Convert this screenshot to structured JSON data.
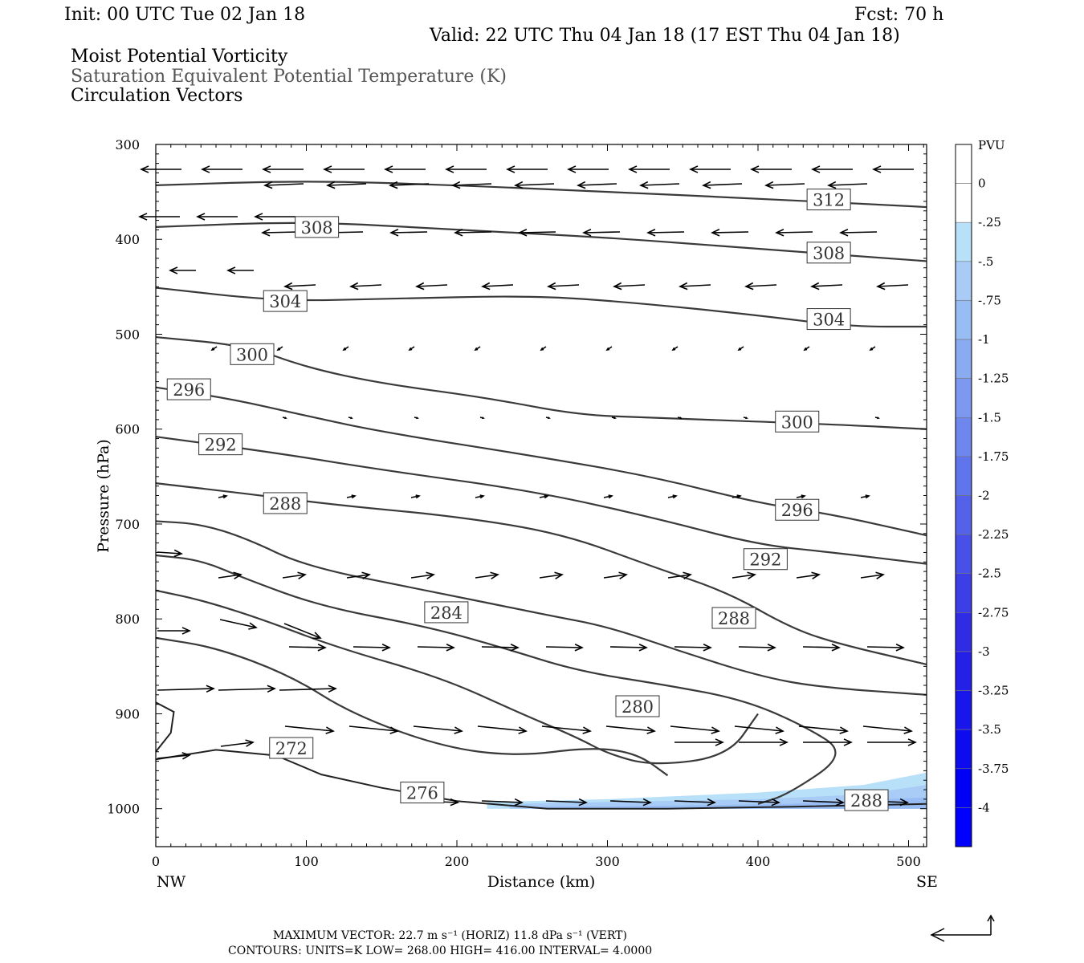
{
  "header": {
    "init": "Init: 00 UTC Tue 02 Jan 18",
    "fcst": "Fcst:   70 h",
    "valid": "Valid: 22 UTC Thu 04 Jan 18 (17 EST Thu 04 Jan 18)",
    "field1": "Moist Potential Vorticity",
    "field2": "Saturation Equivalent Potential Temperature (K)",
    "field3": "Circulation Vectors"
  },
  "chart_data": {
    "type": "contour",
    "xlabel": "Distance (km)",
    "ylabel": "Pressure (hPa)",
    "xlim": [
      0,
      512
    ],
    "ylim": [
      1040,
      300
    ],
    "x_ticks": [
      0,
      100,
      200,
      300,
      400,
      500
    ],
    "y_ticks": [
      300,
      400,
      500,
      600,
      700,
      800,
      900,
      1000
    ],
    "x_endpoints": {
      "left": "NW",
      "right": "SE"
    },
    "colorbar": {
      "title": "PVU",
      "ticks": [
        "0",
        "-.25",
        "-.5",
        "-.75",
        "-1",
        "-1.25",
        "-1.5",
        "-1.75",
        "-2",
        "-2.25",
        "-2.5",
        "-2.75",
        "-3",
        "-3.25",
        "-3.5",
        "-3.75",
        "-4"
      ],
      "colors": [
        "#ffffff",
        "#ffffff",
        "#b8e0f8",
        "#a8ccf6",
        "#98bcf4",
        "#8aaaf2",
        "#7c98f0",
        "#6e86ee",
        "#6074ec",
        "#5462ea",
        "#4850e8",
        "#3c3ee6",
        "#302ce6",
        "#2420e8",
        "#1816ea",
        "#0c0cee",
        "#0000f4"
      ]
    },
    "theta_es_contours": [
      {
        "label": "312",
        "points": [
          [
            0,
            343
          ],
          [
            100,
            338
          ],
          [
            200,
            343
          ],
          [
            300,
            350
          ],
          [
            400,
            357
          ],
          [
            512,
            366
          ]
        ]
      },
      {
        "label": "308",
        "points": [
          [
            0,
            387
          ],
          [
            100,
            381
          ],
          [
            200,
            390
          ],
          [
            300,
            398
          ],
          [
            400,
            410
          ],
          [
            512,
            423
          ]
        ]
      },
      {
        "label": "304",
        "points": [
          [
            0,
            451
          ],
          [
            80,
            465
          ],
          [
            150,
            463
          ],
          [
            250,
            459
          ],
          [
            320,
            467
          ],
          [
            400,
            480
          ],
          [
            460,
            492
          ],
          [
            512,
            492
          ]
        ]
      },
      {
        "label": "300",
        "points": [
          [
            0,
            503
          ],
          [
            60,
            512
          ],
          [
            100,
            535
          ],
          [
            150,
            552
          ],
          [
            220,
            567
          ],
          [
            280,
            585
          ],
          [
            330,
            588
          ],
          [
            450,
            595
          ],
          [
            512,
            600
          ]
        ]
      },
      {
        "label": "296",
        "points": [
          [
            0,
            556
          ],
          [
            50,
            568
          ],
          [
            100,
            586
          ],
          [
            150,
            603
          ],
          [
            250,
            628
          ],
          [
            330,
            650
          ],
          [
            400,
            678
          ],
          [
            450,
            690
          ],
          [
            512,
            712
          ]
        ]
      },
      {
        "label": "292",
        "points": [
          [
            0,
            608
          ],
          [
            80,
            625
          ],
          [
            150,
            643
          ],
          [
            250,
            665
          ],
          [
            330,
            693
          ],
          [
            400,
            722
          ],
          [
            450,
            730
          ],
          [
            512,
            742
          ]
        ]
      },
      {
        "label": "288",
        "points": [
          [
            0,
            657
          ],
          [
            60,
            668
          ],
          [
            120,
            680
          ],
          [
            200,
            692
          ],
          [
            270,
            710
          ],
          [
            330,
            745
          ],
          [
            380,
            772
          ],
          [
            420,
            808
          ],
          [
            450,
            825
          ],
          [
            512,
            848
          ]
        ]
      },
      {
        "label": "284",
        "points": [
          [
            0,
            697
          ],
          [
            30,
            700
          ],
          [
            60,
            715
          ],
          [
            100,
            745
          ],
          [
            180,
            770
          ],
          [
            260,
            796
          ],
          [
            300,
            808
          ],
          [
            350,
            835
          ],
          [
            400,
            860
          ],
          [
            440,
            872
          ],
          [
            512,
            880
          ]
        ]
      },
      {
        "label": "280",
        "points": [
          [
            0,
            733
          ],
          [
            30,
            738
          ],
          [
            60,
            758
          ],
          [
            110,
            787
          ],
          [
            180,
            808
          ],
          [
            230,
            830
          ],
          [
            280,
            855
          ],
          [
            340,
            870
          ],
          [
            390,
            885
          ],
          [
            430,
            912
          ],
          [
            460,
            942
          ],
          [
            420,
            985
          ],
          [
            400,
            995
          ]
        ]
      },
      {
        "label": "",
        "points": [
          [
            0,
            770
          ],
          [
            30,
            780
          ],
          [
            70,
            800
          ],
          [
            120,
            830
          ],
          [
            190,
            862
          ],
          [
            240,
            898
          ],
          [
            280,
            925
          ],
          [
            300,
            942
          ],
          [
            330,
            955
          ],
          [
            380,
            945
          ],
          [
            400,
            900
          ]
        ]
      },
      {
        "label": "",
        "points": [
          [
            0,
            820
          ],
          [
            40,
            830
          ],
          [
            90,
            860
          ],
          [
            130,
            900
          ],
          [
            190,
            935
          ],
          [
            240,
            945
          ],
          [
            290,
            935
          ],
          [
            320,
            942
          ],
          [
            340,
            965
          ]
        ]
      }
    ],
    "labels_positions": [
      {
        "text": "312",
        "x": 447,
        "p": 358
      },
      {
        "text": "308",
        "x": 107,
        "p": 387
      },
      {
        "text": "308",
        "x": 447,
        "p": 414
      },
      {
        "text": "304",
        "x": 86,
        "p": 465
      },
      {
        "text": "304",
        "x": 447,
        "p": 484
      },
      {
        "text": "300",
        "x": 64,
        "p": 521
      },
      {
        "text": "300",
        "x": 426,
        "p": 592
      },
      {
        "text": "296",
        "x": 22,
        "p": 558
      },
      {
        "text": "296",
        "x": 426,
        "p": 685
      },
      {
        "text": "292",
        "x": 43,
        "p": 616
      },
      {
        "text": "292",
        "x": 405,
        "p": 737
      },
      {
        "text": "288",
        "x": 86,
        "p": 678
      },
      {
        "text": "288",
        "x": 384,
        "p": 799
      },
      {
        "text": "284",
        "x": 193,
        "p": 793
      },
      {
        "text": "280",
        "x": 320,
        "p": 892
      },
      {
        "text": "276",
        "x": 177,
        "p": 983
      },
      {
        "text": "272",
        "x": 90,
        "p": 936
      },
      {
        "text": "288",
        "x": 472,
        "p": 991
      }
    ],
    "mpv_shading": {
      "range_x": [
        220,
        512
      ],
      "range_p": [
        958,
        1000
      ],
      "min_value": "-0.5"
    }
  },
  "footer": {
    "max_vector": "MAXIMUM VECTOR:  22.7 m s⁻¹ (HORIZ)          11.8 dPa s⁻¹ (VERT)",
    "contours": "CONTOURS:  UNITS=K   LOW=   268.00         HIGH=   416.00          INTERVAL=      4.0000"
  }
}
